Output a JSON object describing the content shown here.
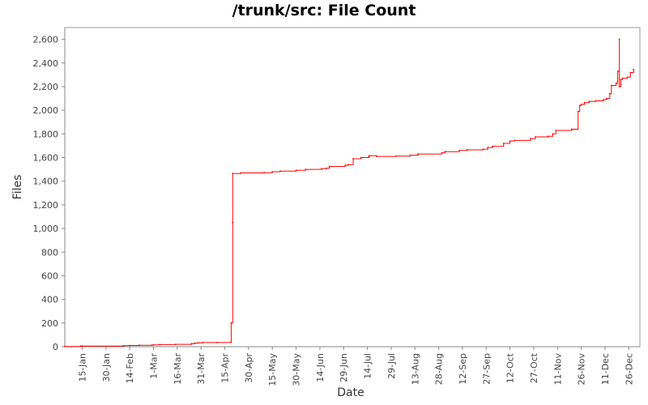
{
  "chart_data": {
    "type": "line",
    "title": "/trunk/src: File Count",
    "xlabel": "Date",
    "ylabel": "Files",
    "ylim": [
      0,
      2700
    ],
    "yticks": [
      0,
      200,
      400,
      600,
      800,
      1000,
      1200,
      1400,
      1600,
      1800,
      2000,
      2200,
      2400,
      2600
    ],
    "ytick_labels": [
      "0",
      "200",
      "400",
      "600",
      "800",
      "1,000",
      "1,200",
      "1,400",
      "1,600",
      "1,800",
      "2,000",
      "2,200",
      "2,400",
      "2,600"
    ],
    "xlim": [
      "01-04",
      "01-02 (next year)"
    ],
    "xticks": [
      "15-Jan",
      "30-Jan",
      "14-Feb",
      "1-Mar",
      "16-Mar",
      "31-Mar",
      "15-Apr",
      "30-Apr",
      "15-May",
      "30-May",
      "14-Jun",
      "29-Jun",
      "14-Jul",
      "29-Jul",
      "13-Aug",
      "28-Aug",
      "12-Sep",
      "27-Sep",
      "12-Oct",
      "27-Oct",
      "11-Nov",
      "26-Nov",
      "11-Dec",
      "26-Dec"
    ],
    "grid": false,
    "line_color": "#ff0000",
    "series": [
      {
        "x": [
          "01-04",
          "01-14",
          "01-15",
          "02-10",
          "02-14",
          "02-20",
          "02-28",
          "03-01",
          "03-05",
          "03-15",
          "03-25",
          "03-27",
          "03-29",
          "04-01",
          "04-10",
          "04-19",
          "04-19",
          "04-20",
          "04-20",
          "04-25",
          "05-10",
          "05-15",
          "05-20",
          "05-30",
          "06-05",
          "06-15",
          "06-18",
          "06-20",
          "06-30",
          "07-02",
          "07-05",
          "07-10",
          "07-15",
          "07-15",
          "07-20",
          "08-01",
          "08-10",
          "08-15",
          "08-30",
          "09-01",
          "09-10",
          "09-15",
          "09-25",
          "09-28",
          "10-01",
          "10-08",
          "10-12",
          "10-15",
          "10-25",
          "10-28",
          "11-05",
          "11-08",
          "11-10",
          "11-20",
          "11-24",
          "11-25",
          "11-26",
          "11-28",
          "12-01",
          "12-05",
          "12-10",
          "12-12",
          "12-14",
          "12-15",
          "12-18",
          "12-19",
          "12-20",
          "12-20",
          "12-21",
          "12-21",
          "12-22",
          "12-25",
          "12-27",
          "12-29"
        ],
        "y": [
          2,
          5,
          5,
          8,
          10,
          12,
          14,
          15,
          18,
          20,
          25,
          30,
          32,
          35,
          35,
          36,
          200,
          1050,
          1465,
          1470,
          1472,
          1480,
          1485,
          1492,
          1500,
          1505,
          1510,
          1525,
          1535,
          1540,
          1590,
          1600,
          1605,
          1615,
          1610,
          1612,
          1620,
          1630,
          1640,
          1650,
          1660,
          1665,
          1670,
          1685,
          1695,
          1720,
          1740,
          1745,
          1760,
          1775,
          1780,
          1800,
          1830,
          1840,
          1990,
          2040,
          2050,
          2065,
          2075,
          2080,
          2090,
          2100,
          2140,
          2210,
          2230,
          2330,
          2600,
          2200,
          2220,
          2260,
          2270,
          2280,
          2320,
          2345
        ]
      }
    ]
  }
}
